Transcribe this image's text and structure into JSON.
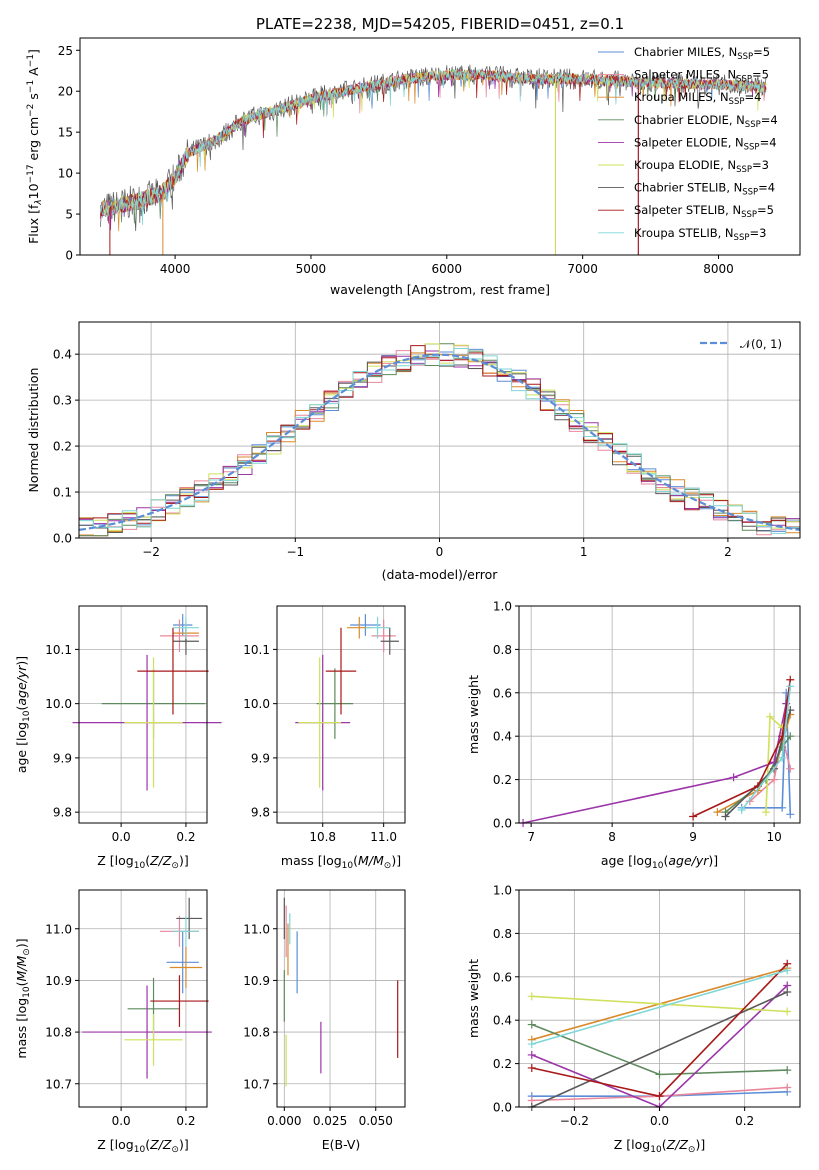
{
  "title": "PLATE=2238, MJD=54205, FIBERID=0451, z=0.1",
  "colors": [
    "#5b8ed6",
    "#e8879c",
    "#d98a2b",
    "#5e8a5e",
    "#9b35a8",
    "#cfe05a",
    "#5a5a5a",
    "#a81818",
    "#7fd6d6"
  ],
  "chart_data": [
    {
      "id": "spectrum",
      "type": "line",
      "xlabel": "wavelength [Angstrom, rest frame]",
      "ylabel": "Flux [f_λ 10^-17 erg cm^-2 s^-1 A^-1]",
      "xlim": [
        3300,
        8600
      ],
      "ylim": [
        0,
        26.5
      ],
      "xticks": [
        4000,
        5000,
        6000,
        7000,
        8000
      ],
      "yticks": [
        0,
        5,
        10,
        15,
        20,
        25
      ],
      "grid": false,
      "legend_position": "right",
      "x_range_data": [
        3450,
        8350
      ],
      "continuum": [
        [
          3450,
          5.5
        ],
        [
          3700,
          6.5
        ],
        [
          3900,
          7.5
        ],
        [
          4000,
          9.5
        ],
        [
          4100,
          12.5
        ],
        [
          4300,
          14
        ],
        [
          4500,
          16.5
        ],
        [
          4800,
          18
        ],
        [
          5100,
          19.5
        ],
        [
          5400,
          20.5
        ],
        [
          5700,
          21.5
        ],
        [
          6000,
          22
        ],
        [
          6300,
          22
        ],
        [
          6600,
          21.5
        ],
        [
          7000,
          21.5
        ],
        [
          7500,
          21
        ],
        [
          8000,
          20.8
        ],
        [
          8350,
          20.5
        ]
      ],
      "series": [
        {
          "name": "Chabrier MILES, N_SSP=5"
        },
        {
          "name": "Salpeter MILES, N_SSP=5"
        },
        {
          "name": "Kroupa MILES, N_SSP=4"
        },
        {
          "name": "Chabrier ELODIE, N_SSP=4"
        },
        {
          "name": "Salpeter ELODIE, N_SSP=4"
        },
        {
          "name": "Kroupa ELODIE, N_SSP=3"
        },
        {
          "name": "Chabrier STELIB, N_SSP=4"
        },
        {
          "name": "Salpeter STELIB, N_SSP=5"
        },
        {
          "name": "Kroupa STELIB, N_SSP=3"
        }
      ],
      "legend_labels": [
        {
          "pre": "Chabrier MILES, N",
          "sub": "SSP",
          "post": "=5"
        },
        {
          "pre": "Salpeter MILES, N",
          "sub": "SSP",
          "post": "=5"
        },
        {
          "pre": "Kroupa MILES, N",
          "sub": "SSP",
          "post": "=4"
        },
        {
          "pre": "Chabrier ELODIE, N",
          "sub": "SSP",
          "post": "=4"
        },
        {
          "pre": "Salpeter ELODIE, N",
          "sub": "SSP",
          "post": "=4"
        },
        {
          "pre": "Kroupa ELODIE, N",
          "sub": "SSP",
          "post": "=3"
        },
        {
          "pre": "Chabrier STELIB, N",
          "sub": "SSP",
          "post": "=4"
        },
        {
          "pre": "Salpeter STELIB, N",
          "sub": "SSP",
          "post": "=5"
        },
        {
          "pre": "Kroupa STELIB, N",
          "sub": "SSP",
          "post": "=3"
        }
      ],
      "spikes": [
        [
          3520,
          0,
          7
        ],
        [
          3910,
          0,
          2
        ],
        [
          6800,
          0,
          7
        ],
        [
          6800,
          0,
          5
        ],
        [
          7410,
          0,
          4
        ],
        [
          7410,
          0,
          7
        ]
      ]
    },
    {
      "id": "residuals",
      "type": "line",
      "xlabel": "(data-model)/error",
      "ylabel": "Normed distribution",
      "xlim": [
        -2.5,
        2.5
      ],
      "ylim": [
        0,
        0.47
      ],
      "xticks": [
        -2,
        -1,
        0,
        1,
        2
      ],
      "ytick_labels": [
        "0.0",
        "0.1",
        "0.2",
        "0.3",
        "0.4"
      ],
      "yticks": [
        0,
        0.1,
        0.2,
        0.3,
        0.4
      ],
      "grid": true,
      "legend_position": "upper right",
      "reference_label": "N(0,1)",
      "bin_width": 0.1
    },
    {
      "id": "age_vs_Z",
      "type": "scatter",
      "xlabel": "Z [log10(Z/Z⊙)]",
      "ylabel": "age [log10(age/yr)]",
      "xlim": [
        -0.13,
        0.265
      ],
      "ylim": [
        9.78,
        10.18
      ],
      "xticks": [
        0.0,
        0.2
      ],
      "xtick_labels": [
        "0.0",
        "0.2"
      ],
      "yticks": [
        9.8,
        9.9,
        10.0,
        10.1
      ],
      "ytick_labels": [
        "9.8",
        "9.9",
        "10.0",
        "10.1"
      ],
      "grid": true,
      "points": [
        {
          "x": 0.19,
          "y": 10.145,
          "xerr": 0.03,
          "yerr": 0.02
        },
        {
          "x": 0.18,
          "y": 10.125,
          "xerr": 0.06,
          "yerr": 0.03
        },
        {
          "x": 0.2,
          "y": 10.13,
          "xerr": 0.04,
          "yerr": 0.02
        },
        {
          "x": 0.1,
          "y": 10.0,
          "xerr": 0.16,
          "yerr": 0.065
        },
        {
          "x": 0.08,
          "y": 9.965,
          "xerr": 0.23,
          "yerr": 0.125
        },
        {
          "x": 0.1,
          "y": 9.965,
          "xerr": 0.09,
          "yerr": 0.12
        },
        {
          "x": 0.2,
          "y": 10.115,
          "xerr": 0.04,
          "yerr": 0.025
        },
        {
          "x": 0.16,
          "y": 10.06,
          "xerr": 0.11,
          "yerr": 0.08
        },
        {
          "x": 0.2,
          "y": 10.14,
          "xerr": 0.04,
          "yerr": 0.02
        }
      ]
    },
    {
      "id": "age_vs_mass",
      "type": "scatter",
      "xlabel": "mass [log10(M/M⊙)]",
      "ylabel": "",
      "xlim": [
        10.65,
        11.07
      ],
      "ylim": [
        9.78,
        10.18
      ],
      "xticks": [
        10.8,
        11.0
      ],
      "xtick_labels": [
        "10.8",
        "11.0"
      ],
      "yticks": [
        9.8,
        9.9,
        10.0,
        10.1
      ],
      "ytick_labels": [
        "9.8",
        "9.9",
        "10.0",
        "10.1"
      ],
      "grid": true,
      "points": [
        {
          "x": 10.94,
          "y": 10.145,
          "xerr": 0.05,
          "yerr": 0.02
        },
        {
          "x": 11.0,
          "y": 10.125,
          "xerr": 0.04,
          "yerr": 0.03
        },
        {
          "x": 10.92,
          "y": 10.14,
          "xerr": 0.04,
          "yerr": 0.02
        },
        {
          "x": 10.84,
          "y": 10.0,
          "xerr": 0.06,
          "yerr": 0.065
        },
        {
          "x": 10.8,
          "y": 9.965,
          "xerr": 0.09,
          "yerr": 0.125
        },
        {
          "x": 10.79,
          "y": 9.965,
          "xerr": 0.07,
          "yerr": 0.12
        },
        {
          "x": 11.02,
          "y": 10.115,
          "xerr": 0.03,
          "yerr": 0.025
        },
        {
          "x": 10.86,
          "y": 10.06,
          "xerr": 0.05,
          "yerr": 0.08
        },
        {
          "x": 10.98,
          "y": 10.14,
          "xerr": 0.04,
          "yerr": 0.02
        }
      ]
    },
    {
      "id": "massweight_vs_age",
      "type": "line",
      "xlabel": "age [log10(age/yr)]",
      "ylabel": "mass weight",
      "xlim": [
        6.85,
        10.32
      ],
      "ylim": [
        0,
        1.0
      ],
      "xticks": [
        7,
        8,
        9,
        10
      ],
      "yticks": [
        0.0,
        0.2,
        0.4,
        0.6,
        0.8,
        1.0
      ],
      "ytick_labels": [
        "0.0",
        "0.2",
        "0.4",
        "0.6",
        "0.8",
        "1.0"
      ],
      "grid": true,
      "series": [
        {
          "points": [
            [
              9.6,
              0.07
            ],
            [
              10.1,
              0.07
            ],
            [
              10.15,
              0.6
            ],
            [
              10.2,
              0.04
            ]
          ]
        },
        {
          "points": [
            [
              9.7,
              0.1
            ],
            [
              10.0,
              0.2
            ],
            [
              10.1,
              0.4
            ],
            [
              10.2,
              0.25
            ]
          ]
        },
        {
          "points": [
            [
              9.3,
              0.05
            ],
            [
              9.8,
              0.15
            ],
            [
              10.05,
              0.3
            ],
            [
              10.2,
              0.5
            ]
          ]
        },
        {
          "points": [
            [
              9.4,
              0.05
            ],
            [
              9.9,
              0.2
            ],
            [
              10.1,
              0.35
            ],
            [
              10.2,
              0.4
            ]
          ]
        },
        {
          "points": [
            [
              6.9,
              0.0
            ],
            [
              9.5,
              0.21
            ],
            [
              10.0,
              0.28
            ],
            [
              10.15,
              0.55
            ]
          ]
        },
        {
          "points": [
            [
              9.9,
              0.05
            ],
            [
              9.95,
              0.49
            ],
            [
              10.1,
              0.44
            ]
          ]
        },
        {
          "points": [
            [
              9.4,
              0.03
            ],
            [
              10.0,
              0.25
            ],
            [
              10.2,
              0.52
            ]
          ]
        },
        {
          "points": [
            [
              9.0,
              0.03
            ],
            [
              9.8,
              0.17
            ],
            [
              10.1,
              0.4
            ],
            [
              10.2,
              0.66
            ]
          ]
        },
        {
          "points": [
            [
              9.6,
              0.06
            ],
            [
              10.1,
              0.3
            ],
            [
              10.2,
              0.63
            ]
          ]
        }
      ]
    },
    {
      "id": "mass_vs_Z",
      "type": "scatter",
      "xlabel": "Z [log10(Z/Z⊙)]",
      "ylabel": "mass [log10(M/M⊙)]",
      "xlim": [
        -0.13,
        0.265
      ],
      "ylim": [
        10.655,
        11.075
      ],
      "xticks": [
        0.0,
        0.2
      ],
      "xtick_labels": [
        "0.0",
        "0.2"
      ],
      "yticks": [
        10.7,
        10.8,
        10.9,
        11.0
      ],
      "ytick_labels": [
        "10.7",
        "10.8",
        "10.9",
        "11.0"
      ],
      "grid": true,
      "points": [
        {
          "x": 0.19,
          "y": 10.935,
          "xerr": 0.05,
          "yerr": 0.06
        },
        {
          "x": 0.18,
          "y": 10.995,
          "xerr": 0.06,
          "yerr": 0.03
        },
        {
          "x": 0.2,
          "y": 10.925,
          "xerr": 0.05,
          "yerr": 0.04
        },
        {
          "x": 0.1,
          "y": 10.845,
          "xerr": 0.08,
          "yerr": 0.06
        },
        {
          "x": 0.08,
          "y": 10.8,
          "xerr": 0.2,
          "yerr": 0.09
        },
        {
          "x": 0.1,
          "y": 10.785,
          "xerr": 0.09,
          "yerr": 0.05
        },
        {
          "x": 0.21,
          "y": 11.02,
          "xerr": 0.04,
          "yerr": 0.04
        },
        {
          "x": 0.18,
          "y": 10.86,
          "xerr": 0.09,
          "yerr": 0.05
        },
        {
          "x": 0.2,
          "y": 10.995,
          "xerr": 0.04,
          "yerr": 0.03
        }
      ]
    },
    {
      "id": "mass_vs_EBV",
      "type": "scatter",
      "xlabel": "E(B-V)",
      "ylabel": "",
      "xlim": [
        -0.004,
        0.066
      ],
      "ylim": [
        10.655,
        11.075
      ],
      "xticks": [
        0.0,
        0.025,
        0.05
      ],
      "xtick_labels": [
        "0.000",
        "0.025",
        "0.050"
      ],
      "yticks": [
        10.7,
        10.8,
        10.9,
        11.0
      ],
      "ytick_labels": [
        "10.7",
        "10.8",
        "10.9",
        "11.0"
      ],
      "grid": true,
      "points": [
        {
          "x": 0.007,
          "y": 10.935,
          "xerr": 0,
          "yerr": 0.06
        },
        {
          "x": 0.001,
          "y": 10.995,
          "xerr": 0,
          "yerr": 0.05
        },
        {
          "x": 0.002,
          "y": 10.96,
          "xerr": 0,
          "yerr": 0.05
        },
        {
          "x": 0.0,
          "y": 10.87,
          "xerr": 0,
          "yerr": 0.05
        },
        {
          "x": 0.02,
          "y": 10.77,
          "xerr": 0,
          "yerr": 0.05
        },
        {
          "x": 0.001,
          "y": 10.745,
          "xerr": 0,
          "yerr": 0.05
        },
        {
          "x": 0.0,
          "y": 11.02,
          "xerr": 0,
          "yerr": 0.04
        },
        {
          "x": 0.062,
          "y": 10.825,
          "xerr": 0,
          "yerr": 0.075
        },
        {
          "x": 0.003,
          "y": 11.0,
          "xerr": 0,
          "yerr": 0.03
        }
      ]
    },
    {
      "id": "massweight_vs_Z",
      "type": "line",
      "xlabel": "Z [log10(Z/Z⊙)]",
      "ylabel": "mass weight",
      "xlim": [
        -0.33,
        0.33
      ],
      "ylim": [
        0,
        1.0
      ],
      "xticks": [
        -0.2,
        0.0,
        0.2
      ],
      "xtick_labels": [
        "−0.2",
        "0.0",
        "0.2"
      ],
      "yticks": [
        0.0,
        0.2,
        0.4,
        0.6,
        0.8,
        1.0
      ],
      "ytick_labels": [
        "0.0",
        "0.2",
        "0.4",
        "0.6",
        "0.8",
        "1.0"
      ],
      "grid": true,
      "series": [
        {
          "points": [
            [
              -0.3,
              0.05
            ],
            [
              0.0,
              0.05
            ],
            [
              0.3,
              0.07
            ]
          ]
        },
        {
          "points": [
            [
              -0.3,
              0.03
            ],
            [
              0.0,
              0.05
            ],
            [
              0.3,
              0.09
            ]
          ]
        },
        {
          "points": [
            [
              -0.3,
              0.31
            ],
            [
              0.3,
              0.64
            ]
          ]
        },
        {
          "points": [
            [
              -0.3,
              0.38
            ],
            [
              0.0,
              0.15
            ],
            [
              0.3,
              0.17
            ]
          ]
        },
        {
          "points": [
            [
              -0.3,
              0.24
            ],
            [
              0.0,
              0.0
            ],
            [
              0.3,
              0.56
            ]
          ]
        },
        {
          "points": [
            [
              -0.3,
              0.51
            ],
            [
              0.3,
              0.44
            ]
          ]
        },
        {
          "points": [
            [
              -0.3,
              0.0
            ],
            [
              0.3,
              0.53
            ]
          ]
        },
        {
          "points": [
            [
              -0.3,
              0.18
            ],
            [
              0.0,
              0.05
            ],
            [
              0.3,
              0.66
            ]
          ]
        },
        {
          "points": [
            [
              -0.3,
              0.29
            ],
            [
              0.3,
              0.63
            ]
          ]
        }
      ]
    }
  ]
}
